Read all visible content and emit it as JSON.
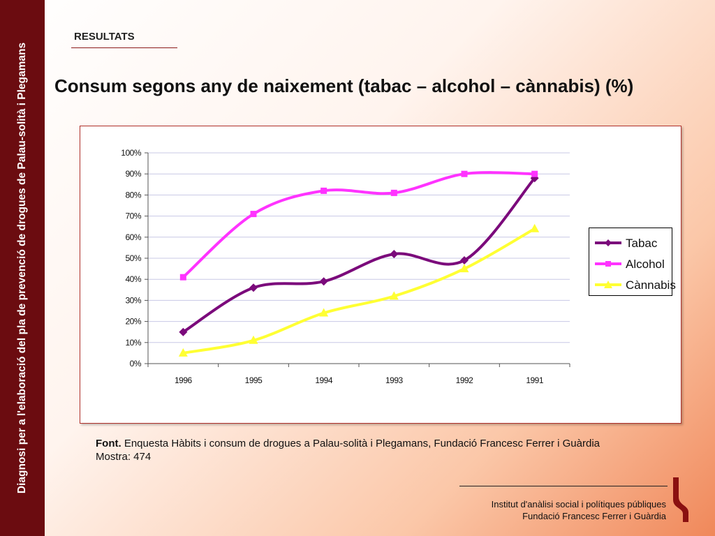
{
  "side_title": "Diagnosi per a l'elaboració del pla de prevenció de drogues de Palau-solità i Plegamans",
  "section_label": "RESULTATS",
  "page_title": "Consum segons any de naixement (tabac – alcohol – cànnabis) (%)",
  "source": {
    "label": "Font.",
    "text": "Enquesta Hàbits i consum de drogues a Palau-solità i Plegamans, Fundació Francesc Ferrer i Guàrdia",
    "sample": "Mostra: 474"
  },
  "footer": {
    "line1": "Institut d'anàlisi social i polítiques públiques",
    "line2": "Fundació Francesc Ferrer i Guàrdia"
  },
  "colors": {
    "tabac": "#7b0a7b",
    "alcohol": "#ff33ff",
    "cannabis": "#ffff33",
    "sidebar": "#6b0c10"
  },
  "chart_data": {
    "type": "line",
    "categories": [
      "1996",
      "1995",
      "1994",
      "1993",
      "1992",
      "1991"
    ],
    "ylim": [
      0,
      100
    ],
    "yticks": [
      "0%",
      "10%",
      "20%",
      "30%",
      "40%",
      "50%",
      "60%",
      "70%",
      "80%",
      "90%",
      "100%"
    ],
    "grid": true,
    "legend_position": "right",
    "series": [
      {
        "name": "Tabac",
        "marker": "diamond",
        "values": [
          15,
          36,
          39,
          52,
          49,
          88
        ]
      },
      {
        "name": "Alcohol",
        "marker": "square",
        "values": [
          41,
          71,
          82,
          81,
          90,
          90
        ]
      },
      {
        "name": "Cànnabis",
        "marker": "triangle",
        "values": [
          5,
          11,
          24,
          32,
          45,
          64
        ]
      }
    ]
  }
}
